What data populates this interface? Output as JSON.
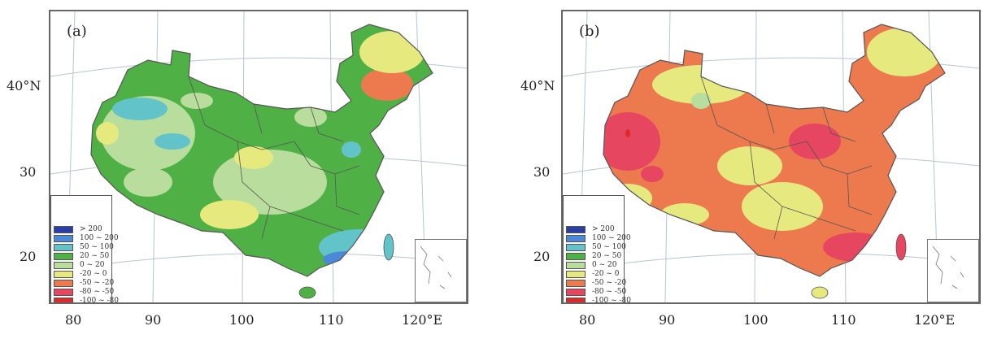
{
  "panels": [
    {
      "id": "a",
      "tag": "(a)"
    },
    {
      "id": "b",
      "tag": "(b)"
    }
  ],
  "latitude_labels": [
    "40°N",
    "30",
    "20"
  ],
  "longitude_labels": [
    "80",
    "90",
    "100",
    "110",
    "120°E"
  ],
  "legend": [
    {
      "label": "> 200",
      "color": "#2a3ea8"
    },
    {
      "label": "100 ~ 200",
      "color": "#4b88d8"
    },
    {
      "label": "50 ~ 100",
      "color": "#62c3c9"
    },
    {
      "label": "20 ~ 50",
      "color": "#4fb045"
    },
    {
      "label": "0 ~ 20",
      "color": "#b8dd9c"
    },
    {
      "label": "-20 ~ 0",
      "color": "#e6ea7e"
    },
    {
      "label": "-50 ~ -20",
      "color": "#ec7a4e"
    },
    {
      "label": "-80 ~ -50",
      "color": "#e64660"
    },
    {
      "label": "-100 ~ -80",
      "color": "#e02a2a"
    }
  ],
  "colors": {
    "panel_a_base": "#4fb045",
    "panel_b_base": "#ec7a4e",
    "boundary": "#555555",
    "graticule": "#b8c4d4"
  }
}
